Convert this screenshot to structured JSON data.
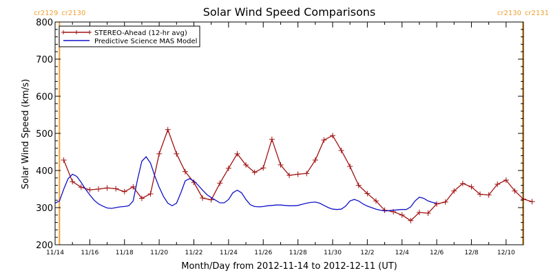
{
  "chart_data": {
    "type": "line",
    "title": "Solar Wind Speed Comparisons",
    "xlabel": "Month/Day from 2012-11-14 to 2012-12-11 (UT)",
    "ylabel": "Solar Wind Speed (km/s)",
    "ylim": [
      200,
      800
    ],
    "yticks": [
      "200",
      "300",
      "400",
      "500",
      "600",
      "700",
      "800"
    ],
    "xlim": [
      "2012-11-14",
      "2012-12-11"
    ],
    "xticks": [
      {
        "date": "2012-11-14",
        "label": "11/14"
      },
      {
        "date": "2012-11-16",
        "label": "11/16"
      },
      {
        "date": "2012-11-18",
        "label": "11/18"
      },
      {
        "date": "2012-11-20",
        "label": "11/20"
      },
      {
        "date": "2012-11-22",
        "label": "11/22"
      },
      {
        "date": "2012-11-24",
        "label": "11/24"
      },
      {
        "date": "2012-11-26",
        "label": "11/26"
      },
      {
        "date": "2012-11-28",
        "label": "11/28"
      },
      {
        "date": "2012-11-30",
        "label": "11/30"
      },
      {
        "date": "2012-12-02",
        "label": "12/2"
      },
      {
        "date": "2012-12-04",
        "label": "12/4"
      },
      {
        "date": "2012-12-06",
        "label": "12/6"
      },
      {
        "date": "2012-12-08",
        "label": "12/8"
      },
      {
        "date": "2012-12-10",
        "label": "12/10"
      }
    ],
    "legend_position": "top-left",
    "grid": false,
    "markers": [
      {
        "date": "2012-11-14 06:00",
        "color": "#f0a030",
        "label_left": "cr2129",
        "label_right": "cr2130"
      },
      {
        "date": "2012-12-10 23:00",
        "color": "#f0a030",
        "label_left": "cr2130",
        "label_right": "cr2131"
      }
    ],
    "series": [
      {
        "name": "STEREO-Ahead (12-hr avg)",
        "color": "#a01010",
        "marker": "plus",
        "points": [
          [
            "2012-11-14 12:00",
            428
          ],
          [
            "2012-11-15 00:00",
            370
          ],
          [
            "2012-11-15 12:00",
            355
          ],
          [
            "2012-11-16 00:00",
            348
          ],
          [
            "2012-11-16 12:00",
            350
          ],
          [
            "2012-11-17 00:00",
            353
          ],
          [
            "2012-11-17 12:00",
            351
          ],
          [
            "2012-11-18 00:00",
            343
          ],
          [
            "2012-11-18 12:00",
            356
          ],
          [
            "2012-11-19 00:00",
            325
          ],
          [
            "2012-11-19 12:00",
            337
          ],
          [
            "2012-11-20 00:00",
            445
          ],
          [
            "2012-11-20 12:00",
            510
          ],
          [
            "2012-11-21 00:00",
            445
          ],
          [
            "2012-11-21 12:00",
            397
          ],
          [
            "2012-11-22 00:00",
            368
          ],
          [
            "2012-11-22 12:00",
            326
          ],
          [
            "2012-11-23 00:00",
            321
          ],
          [
            "2012-11-23 12:00",
            366
          ],
          [
            "2012-11-24 00:00",
            406
          ],
          [
            "2012-11-24 12:00",
            445
          ],
          [
            "2012-11-25 00:00",
            415
          ],
          [
            "2012-11-25 12:00",
            395
          ],
          [
            "2012-11-26 00:00",
            407
          ],
          [
            "2012-11-26 12:00",
            484
          ],
          [
            "2012-11-27 00:00",
            415
          ],
          [
            "2012-11-27 12:00",
            387
          ],
          [
            "2012-11-28 00:00",
            390
          ],
          [
            "2012-11-28 12:00",
            392
          ],
          [
            "2012-11-29 00:00",
            428
          ],
          [
            "2012-11-29 12:00",
            482
          ],
          [
            "2012-11-30 00:00",
            494
          ],
          [
            "2012-11-30 12:00",
            454
          ],
          [
            "2012-12-01 00:00",
            411
          ],
          [
            "2012-12-01 12:00",
            360
          ],
          [
            "2012-12-02 00:00",
            338
          ],
          [
            "2012-12-02 12:00",
            318
          ],
          [
            "2012-12-03 00:00",
            293
          ],
          [
            "2012-12-03 12:00",
            289
          ],
          [
            "2012-12-04 00:00",
            280
          ],
          [
            "2012-12-04 12:00",
            265
          ],
          [
            "2012-12-05 00:00",
            287
          ],
          [
            "2012-12-05 12:00",
            285
          ],
          [
            "2012-12-06 00:00",
            310
          ],
          [
            "2012-12-06 12:00",
            315
          ],
          [
            "2012-12-07 00:00",
            345
          ],
          [
            "2012-12-07 12:00",
            365
          ],
          [
            "2012-12-08 00:00",
            356
          ],
          [
            "2012-12-08 12:00",
            336
          ],
          [
            "2012-12-09 00:00",
            334
          ],
          [
            "2012-12-09 12:00",
            363
          ],
          [
            "2012-12-10 00:00",
            374
          ],
          [
            "2012-12-10 12:00",
            345
          ],
          [
            "2012-12-11 00:00",
            323
          ],
          [
            "2012-12-11 12:00",
            316
          ]
        ]
      },
      {
        "name": "Predictive Science MAS Model",
        "color": "#1010c8",
        "marker": "none",
        "points": [
          [
            "2012-11-14 00:00",
            312
          ],
          [
            "2012-11-14 06:00",
            318
          ],
          [
            "2012-11-14 12:00",
            350
          ],
          [
            "2012-11-14 18:00",
            378
          ],
          [
            "2012-11-15 00:00",
            390
          ],
          [
            "2012-11-15 06:00",
            384
          ],
          [
            "2012-11-15 12:00",
            368
          ],
          [
            "2012-11-15 18:00",
            350
          ],
          [
            "2012-11-16 00:00",
            334
          ],
          [
            "2012-11-16 06:00",
            320
          ],
          [
            "2012-11-16 12:00",
            310
          ],
          [
            "2012-11-16 18:00",
            304
          ],
          [
            "2012-11-17 00:00",
            299
          ],
          [
            "2012-11-17 06:00",
            298
          ],
          [
            "2012-11-17 12:00",
            300
          ],
          [
            "2012-11-17 18:00",
            302
          ],
          [
            "2012-11-18 00:00",
            303
          ],
          [
            "2012-11-18 06:00",
            305
          ],
          [
            "2012-11-18 12:00",
            318
          ],
          [
            "2012-11-18 18:00",
            375
          ],
          [
            "2012-11-19 00:00",
            425
          ],
          [
            "2012-11-19 06:00",
            437
          ],
          [
            "2012-11-19 12:00",
            420
          ],
          [
            "2012-11-19 18:00",
            385
          ],
          [
            "2012-11-20 00:00",
            355
          ],
          [
            "2012-11-20 06:00",
            330
          ],
          [
            "2012-11-20 12:00",
            312
          ],
          [
            "2012-11-20 18:00",
            305
          ],
          [
            "2012-11-21 00:00",
            312
          ],
          [
            "2012-11-21 06:00",
            340
          ],
          [
            "2012-11-21 12:00",
            372
          ],
          [
            "2012-11-21 18:00",
            378
          ],
          [
            "2012-11-22 00:00",
            372
          ],
          [
            "2012-11-22 06:00",
            360
          ],
          [
            "2012-11-22 12:00",
            347
          ],
          [
            "2012-11-22 18:00",
            335
          ],
          [
            "2012-11-23 00:00",
            327
          ],
          [
            "2012-11-23 06:00",
            320
          ],
          [
            "2012-11-23 12:00",
            313
          ],
          [
            "2012-11-23 18:00",
            313
          ],
          [
            "2012-11-24 00:00",
            322
          ],
          [
            "2012-11-24 06:00",
            340
          ],
          [
            "2012-11-24 12:00",
            347
          ],
          [
            "2012-11-24 18:00",
            340
          ],
          [
            "2012-11-25 00:00",
            322
          ],
          [
            "2012-11-25 06:00",
            308
          ],
          [
            "2012-11-25 12:00",
            303
          ],
          [
            "2012-11-25 18:00",
            302
          ],
          [
            "2012-11-26 00:00",
            303
          ],
          [
            "2012-11-26 06:00",
            305
          ],
          [
            "2012-11-26 12:00",
            306
          ],
          [
            "2012-11-26 18:00",
            307
          ],
          [
            "2012-11-27 00:00",
            307
          ],
          [
            "2012-11-27 06:00",
            306
          ],
          [
            "2012-11-27 12:00",
            305
          ],
          [
            "2012-11-27 18:00",
            305
          ],
          [
            "2012-11-28 00:00",
            306
          ],
          [
            "2012-11-28 06:00",
            309
          ],
          [
            "2012-11-28 12:00",
            312
          ],
          [
            "2012-11-28 18:00",
            314
          ],
          [
            "2012-11-29 00:00",
            315
          ],
          [
            "2012-11-29 06:00",
            312
          ],
          [
            "2012-11-29 12:00",
            306
          ],
          [
            "2012-11-29 18:00",
            300
          ],
          [
            "2012-11-30 00:00",
            296
          ],
          [
            "2012-11-30 06:00",
            295
          ],
          [
            "2012-11-30 12:00",
            296
          ],
          [
            "2012-11-30 18:00",
            304
          ],
          [
            "2012-12-01 00:00",
            318
          ],
          [
            "2012-12-01 06:00",
            322
          ],
          [
            "2012-12-01 12:00",
            318
          ],
          [
            "2012-12-01 18:00",
            310
          ],
          [
            "2012-12-02 00:00",
            304
          ],
          [
            "2012-12-02 06:00",
            300
          ],
          [
            "2012-12-02 12:00",
            296
          ],
          [
            "2012-12-02 18:00",
            293
          ],
          [
            "2012-12-03 00:00",
            291
          ],
          [
            "2012-12-03 06:00",
            292
          ],
          [
            "2012-12-03 12:00",
            293
          ],
          [
            "2012-12-03 18:00",
            294
          ],
          [
            "2012-12-04 00:00",
            295
          ],
          [
            "2012-12-04 06:00",
            295
          ],
          [
            "2012-12-04 12:00",
            302
          ],
          [
            "2012-12-04 18:00",
            318
          ],
          [
            "2012-12-05 00:00",
            328
          ],
          [
            "2012-12-05 06:00",
            325
          ],
          [
            "2012-12-05 12:00",
            318
          ],
          [
            "2012-12-05 18:00",
            314
          ],
          [
            "2012-12-06 00:00",
            312
          ]
        ]
      }
    ]
  }
}
